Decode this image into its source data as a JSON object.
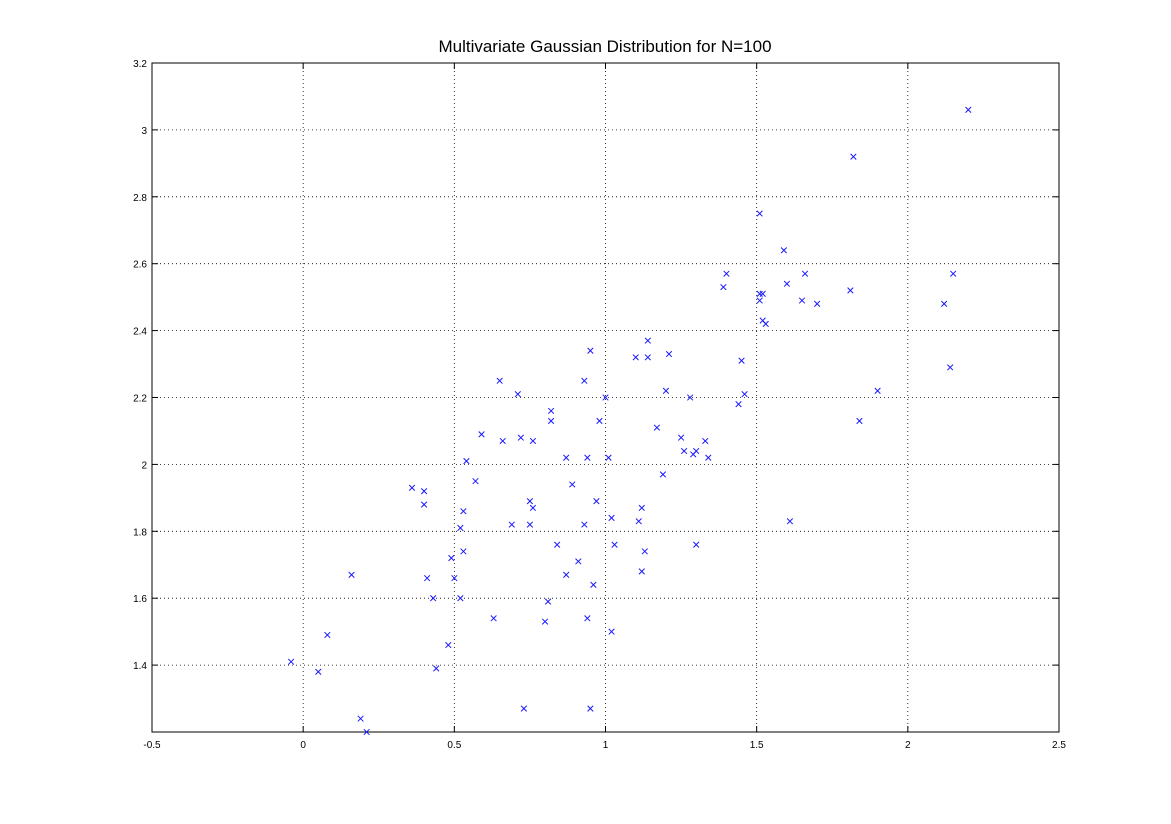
{
  "chart_data": {
    "type": "scatter",
    "title": "Multivariate Gaussian Distribution for N=100",
    "xlabel": "",
    "ylabel": "",
    "xlim": [
      -0.5,
      2.5
    ],
    "ylim": [
      1.2,
      3.2
    ],
    "xticks": [
      -0.5,
      0,
      0.5,
      1,
      1.5,
      2,
      2.5
    ],
    "xtick_labels": [
      "-0.5",
      "0",
      "0.5",
      "1",
      "1.5",
      "2",
      "2.5"
    ],
    "yticks": [
      1.4,
      1.6,
      1.8,
      2.0,
      2.2,
      2.4,
      2.6,
      2.8,
      3.0,
      3.2
    ],
    "ytick_labels": [
      "1.4",
      "1.6",
      "1.8",
      "2",
      "2.2",
      "2.4",
      "2.6",
      "2.8",
      "3",
      "3.2"
    ],
    "grid": true,
    "marker": "x",
    "marker_color": "#1a1aff",
    "points": [
      [
        -0.04,
        1.41
      ],
      [
        0.05,
        1.38
      ],
      [
        0.08,
        1.49
      ],
      [
        0.16,
        1.67
      ],
      [
        0.19,
        1.24
      ],
      [
        0.21,
        1.2
      ],
      [
        0.36,
        1.93
      ],
      [
        0.4,
        1.88
      ],
      [
        0.4,
        1.92
      ],
      [
        0.41,
        1.66
      ],
      [
        0.43,
        1.6
      ],
      [
        0.44,
        1.39
      ],
      [
        0.48,
        1.46
      ],
      [
        0.49,
        1.72
      ],
      [
        0.5,
        1.66
      ],
      [
        0.52,
        1.81
      ],
      [
        0.52,
        1.6
      ],
      [
        0.53,
        1.74
      ],
      [
        0.53,
        1.86
      ],
      [
        0.54,
        2.01
      ],
      [
        0.57,
        1.95
      ],
      [
        0.59,
        2.09
      ],
      [
        0.63,
        1.54
      ],
      [
        0.65,
        2.25
      ],
      [
        0.66,
        2.07
      ],
      [
        0.69,
        1.82
      ],
      [
        0.71,
        2.21
      ],
      [
        0.72,
        2.08
      ],
      [
        0.73,
        1.27
      ],
      [
        0.75,
        1.89
      ],
      [
        0.75,
        1.82
      ],
      [
        0.76,
        1.87
      ],
      [
        0.76,
        2.07
      ],
      [
        0.8,
        1.53
      ],
      [
        0.81,
        1.59
      ],
      [
        0.82,
        2.13
      ],
      [
        0.82,
        2.16
      ],
      [
        0.84,
        1.76
      ],
      [
        0.87,
        2.02
      ],
      [
        0.87,
        1.67
      ],
      [
        0.89,
        1.94
      ],
      [
        0.91,
        1.71
      ],
      [
        0.93,
        1.82
      ],
      [
        0.93,
        2.25
      ],
      [
        0.94,
        1.54
      ],
      [
        0.94,
        2.02
      ],
      [
        0.95,
        2.34
      ],
      [
        0.95,
        1.27
      ],
      [
        0.96,
        1.64
      ],
      [
        0.97,
        1.89
      ],
      [
        0.98,
        2.13
      ],
      [
        1.0,
        2.2
      ],
      [
        1.01,
        2.02
      ],
      [
        1.02,
        1.84
      ],
      [
        1.02,
        1.5
      ],
      [
        1.03,
        1.76
      ],
      [
        1.1,
        2.32
      ],
      [
        1.11,
        1.83
      ],
      [
        1.12,
        1.87
      ],
      [
        1.12,
        1.68
      ],
      [
        1.13,
        1.74
      ],
      [
        1.14,
        2.37
      ],
      [
        1.14,
        2.32
      ],
      [
        1.17,
        2.11
      ],
      [
        1.19,
        1.97
      ],
      [
        1.2,
        2.22
      ],
      [
        1.21,
        2.33
      ],
      [
        1.25,
        2.08
      ],
      [
        1.26,
        2.04
      ],
      [
        1.28,
        2.2
      ],
      [
        1.29,
        2.03
      ],
      [
        1.3,
        1.76
      ],
      [
        1.3,
        2.04
      ],
      [
        1.33,
        2.07
      ],
      [
        1.34,
        2.02
      ],
      [
        1.39,
        2.53
      ],
      [
        1.4,
        2.57
      ],
      [
        1.44,
        2.18
      ],
      [
        1.45,
        2.31
      ],
      [
        1.46,
        2.21
      ],
      [
        1.51,
        2.75
      ],
      [
        1.51,
        2.49
      ],
      [
        1.51,
        2.51
      ],
      [
        1.52,
        2.51
      ],
      [
        1.52,
        2.43
      ],
      [
        1.53,
        2.42
      ],
      [
        1.59,
        2.64
      ],
      [
        1.6,
        2.54
      ],
      [
        1.61,
        1.83
      ],
      [
        1.65,
        2.49
      ],
      [
        1.66,
        2.57
      ],
      [
        1.7,
        2.48
      ],
      [
        1.81,
        2.52
      ],
      [
        1.82,
        2.92
      ],
      [
        1.84,
        2.13
      ],
      [
        1.9,
        2.22
      ],
      [
        2.12,
        2.48
      ],
      [
        2.14,
        2.29
      ],
      [
        2.15,
        2.57
      ],
      [
        2.2,
        3.06
      ]
    ]
  }
}
